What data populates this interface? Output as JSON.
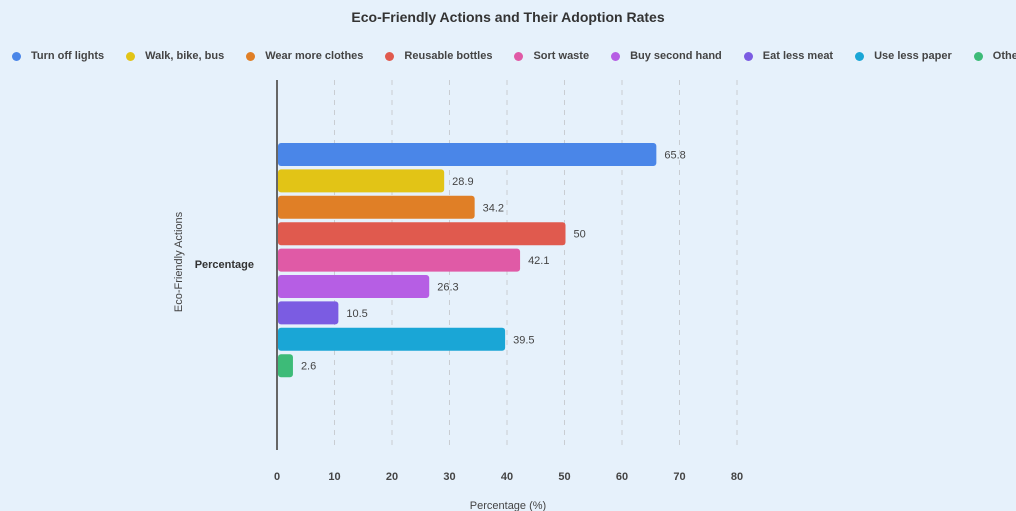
{
  "chart_data": {
    "type": "bar",
    "orientation": "horizontal",
    "title": "Eco-Friendly Actions and Their Adoption Rates",
    "xlabel": "Percentage (%)",
    "ylabel": "Eco-Friendly Actions",
    "categories": [
      "Percentage"
    ],
    "xlim": [
      0,
      80
    ],
    "xticks": [
      "0",
      "10",
      "20",
      "30",
      "40",
      "50",
      "60",
      "70",
      "80"
    ],
    "grid": "vertical dashed",
    "legend_position": "top",
    "series": [
      {
        "name": "Turn off lights",
        "values": [
          65.8
        ],
        "label": "65.8",
        "color": "#4a86e8"
      },
      {
        "name": "Walk, bike, bus",
        "values": [
          28.9
        ],
        "label": "28.9",
        "color": "#e2c416"
      },
      {
        "name": "Wear more clothes",
        "values": [
          34.2
        ],
        "label": "34.2",
        "color": "#e07f26"
      },
      {
        "name": "Reusable bottles",
        "values": [
          50
        ],
        "label": "50",
        "color": "#e05a4e"
      },
      {
        "name": "Sort waste",
        "values": [
          42.1
        ],
        "label": "42.1",
        "color": "#e05aa6"
      },
      {
        "name": "Buy second hand",
        "values": [
          26.3
        ],
        "label": "26.3",
        "color": "#b65ee4"
      },
      {
        "name": "Eat less meat",
        "values": [
          10.5
        ],
        "label": "10.5",
        "color": "#7b5ce2"
      },
      {
        "name": "Use less paper",
        "values": [
          39.5
        ],
        "label": "39.5",
        "color": "#1aa6d6"
      },
      {
        "name": "Other",
        "values": [
          2.6
        ],
        "label": "2.6",
        "color": "#3dbb78"
      }
    ]
  }
}
